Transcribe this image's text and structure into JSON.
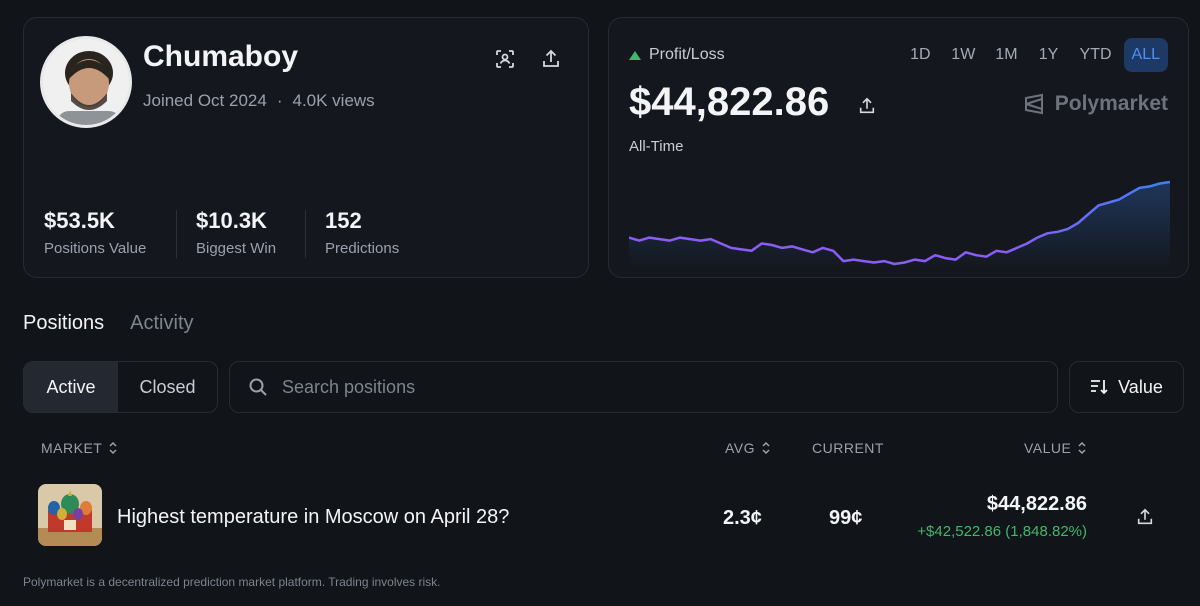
{
  "profile": {
    "username": "Chumaboy",
    "joined": "Joined Oct 2024",
    "views": "4.0K views",
    "stats": [
      {
        "value": "$53.5K",
        "label": "Positions Value"
      },
      {
        "value": "$10.3K",
        "label": "Biggest Win"
      },
      {
        "value": "152",
        "label": "Predictions"
      }
    ],
    "icons": [
      "scan-icon",
      "share-icon"
    ]
  },
  "pnl": {
    "label": "Profit/Loss",
    "value": "$44,822.86",
    "period": "All-Time",
    "brand": "Polymarket",
    "ranges": [
      "1D",
      "1W",
      "1M",
      "1Y",
      "YTD",
      "ALL"
    ],
    "active_range": "ALL",
    "colors": {
      "up": "#3fb969",
      "line_start": "#8b5cf6",
      "line_end": "#3b82f6"
    }
  },
  "chart_data": {
    "type": "line",
    "series": [
      {
        "values": [
          0.62,
          0.6,
          0.62,
          0.61,
          0.6,
          0.62,
          0.61,
          0.6,
          0.61,
          0.58,
          0.55,
          0.54,
          0.53,
          0.58,
          0.57,
          0.55,
          0.56,
          0.54,
          0.52,
          0.55,
          0.53,
          0.46,
          0.47,
          0.46,
          0.45,
          0.46,
          0.44,
          0.45,
          0.47,
          0.46,
          0.5,
          0.48,
          0.47,
          0.52,
          0.5,
          0.49,
          0.53,
          0.52,
          0.55,
          0.58,
          0.62,
          0.65,
          0.66,
          0.68,
          0.72,
          0.78,
          0.84,
          0.86,
          0.88,
          0.92,
          0.96,
          0.97,
          0.99,
          1.0
        ]
      }
    ]
  },
  "tabs": [
    "Positions",
    "Activity"
  ],
  "filters": {
    "segments": [
      "Active",
      "Closed"
    ],
    "search_placeholder": "Search positions",
    "sort_label": "Value"
  },
  "table": {
    "headers": {
      "market": "MARKET",
      "avg": "AVG",
      "current": "CURRENT",
      "value": "VALUE"
    },
    "rows": [
      {
        "title": "Highest temperature in Moscow on April 28?",
        "avg": "2.3¢",
        "current": "99¢",
        "value": "$44,822.86",
        "gain": "+$42,522.86 (1,848.82%)"
      }
    ]
  },
  "footer": "Polymarket is a decentralized prediction market platform. Trading involves risk."
}
